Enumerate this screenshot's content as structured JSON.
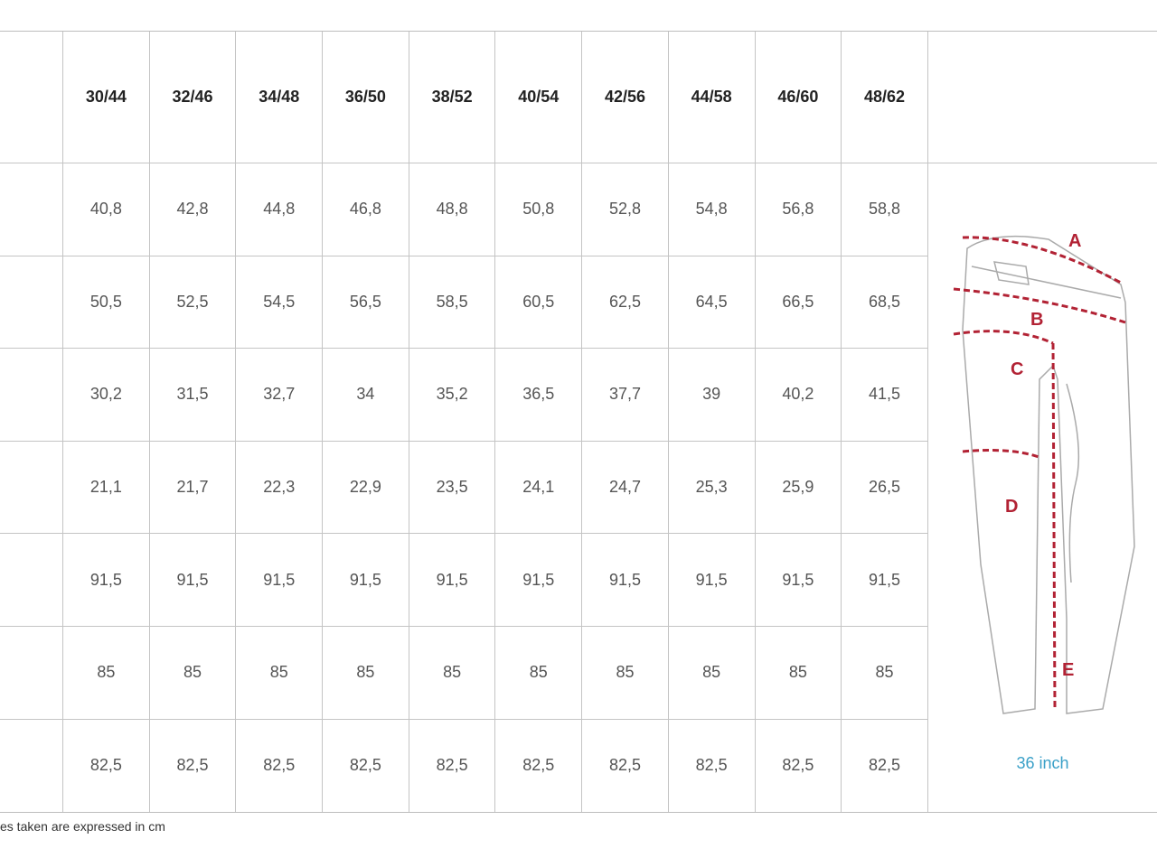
{
  "table": {
    "columns": [
      "30/44",
      "32/46",
      "34/48",
      "36/50",
      "38/52",
      "40/54",
      "42/56",
      "44/58",
      "46/60",
      "48/62"
    ],
    "rows": [
      [
        "40,8",
        "42,8",
        "44,8",
        "46,8",
        "48,8",
        "50,8",
        "52,8",
        "54,8",
        "56,8",
        "58,8"
      ],
      [
        "50,5",
        "52,5",
        "54,5",
        "56,5",
        "58,5",
        "60,5",
        "62,5",
        "64,5",
        "66,5",
        "68,5"
      ],
      [
        "30,2",
        "31,5",
        "32,7",
        "34",
        "35,2",
        "36,5",
        "37,7",
        "39",
        "40,2",
        "41,5"
      ],
      [
        "21,1",
        "21,7",
        "22,3",
        "22,9",
        "23,5",
        "24,1",
        "24,7",
        "25,3",
        "25,9",
        "26,5"
      ],
      [
        "91,5",
        "91,5",
        "91,5",
        "91,5",
        "91,5",
        "91,5",
        "91,5",
        "91,5",
        "91,5",
        "91,5"
      ],
      [
        "85",
        "85",
        "85",
        "85",
        "85",
        "85",
        "85",
        "85",
        "85",
        "85"
      ],
      [
        "82,5",
        "82,5",
        "82,5",
        "82,5",
        "82,5",
        "82,5",
        "82,5",
        "82,5",
        "82,5",
        "82,5"
      ]
    ]
  },
  "figure": {
    "labels": [
      "A",
      "B",
      "C",
      "D",
      "E"
    ],
    "caption": "36 inch",
    "measure_color": "#b22234",
    "caption_color": "#3aa0c8"
  },
  "footnote": "es taken are expressed in cm"
}
